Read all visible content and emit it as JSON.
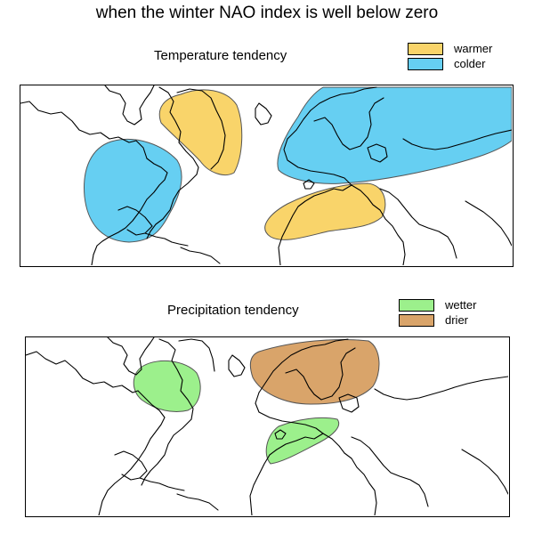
{
  "title": "when the winter NAO index is well below zero",
  "colors": {
    "warmer": "#f9d46a",
    "colder": "#66cff2",
    "wetter": "#9cf08c",
    "drier": "#d9a46a"
  },
  "temperature_panel": {
    "title": "Temperature tendency",
    "legend": [
      {
        "label": "warmer",
        "color_key": "warmer"
      },
      {
        "label": "colder",
        "color_key": "colder"
      }
    ]
  },
  "precipitation_panel": {
    "title": "Precipitation tendency",
    "legend": [
      {
        "label": "wetter",
        "color_key": "wetter"
      },
      {
        "label": "drier",
        "color_key": "drier"
      }
    ]
  }
}
